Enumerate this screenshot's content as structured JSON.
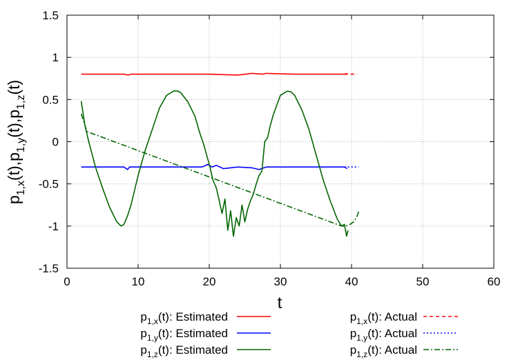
{
  "chart_data": {
    "type": "line",
    "xlabel": "t",
    "ylabel": {
      "parts": [
        {
          "base": "p",
          "sub": "1,x"
        },
        {
          "text": "(t),"
        },
        {
          "base": "p",
          "sub": "1,y"
        },
        {
          "text": "(t),"
        },
        {
          "base": "p",
          "sub": "1,z"
        },
        {
          "text": "(t)"
        }
      ]
    },
    "xlim": [
      0,
      60
    ],
    "ylim": [
      -1.5,
      1.5
    ],
    "x_ticks": [
      "0",
      "10",
      "20",
      "30",
      "40",
      "50",
      "60"
    ],
    "y_ticks": [
      "-1.5",
      "-1",
      "-0.5",
      "0",
      "0.5",
      "1",
      "1.5"
    ],
    "grid": true,
    "legend_position": "bottom",
    "series": [
      {
        "id": "est_x",
        "name": "Estimated",
        "sub": "1,x",
        "color": "#ff0000",
        "style": "solid",
        "x": [
          2,
          8,
          8.6,
          9,
          12,
          16,
          20,
          24,
          26,
          27.5,
          28,
          32,
          36,
          39,
          39.4
        ],
        "y": [
          0.8,
          0.8,
          0.79,
          0.8,
          0.8,
          0.8,
          0.8,
          0.79,
          0.81,
          0.8,
          0.81,
          0.8,
          0.8,
          0.8,
          0.81
        ]
      },
      {
        "id": "est_y",
        "name": "Estimated",
        "sub": "1,y",
        "color": "#0000ff",
        "style": "solid",
        "x": [
          2,
          8,
          8.5,
          8.8,
          12,
          16,
          19,
          19.8,
          20.4,
          21,
          22,
          24,
          26,
          27,
          28,
          32,
          36,
          39,
          39.4
        ],
        "y": [
          -0.3,
          -0.3,
          -0.33,
          -0.3,
          -0.3,
          -0.3,
          -0.3,
          -0.27,
          -0.3,
          -0.28,
          -0.32,
          -0.3,
          -0.31,
          -0.33,
          -0.3,
          -0.3,
          -0.3,
          -0.3,
          -0.32
        ]
      },
      {
        "id": "est_z",
        "name": "Estimated",
        "sub": "1,z",
        "color": "#006400",
        "style": "solid",
        "x": [
          2,
          2.5,
          3,
          4,
          5,
          6,
          7,
          7.6,
          8,
          8.5,
          9,
          10,
          11,
          12,
          13,
          14,
          15,
          15.6,
          16,
          17,
          18,
          18.6,
          19.2,
          19.6,
          20.1,
          20.5,
          21,
          21.4,
          21.8,
          22.2,
          22.6,
          23,
          23.4,
          23.8,
          24.2,
          24.6,
          25,
          25.4,
          25.8,
          26.2,
          26.6,
          27,
          27.4,
          27.8,
          28.2,
          28.6,
          29,
          30,
          31,
          31.5,
          32,
          33,
          34,
          35,
          36,
          37,
          38,
          38.6,
          39,
          39.3,
          39.5
        ],
        "y": [
          0.48,
          0.2,
          0.02,
          -0.3,
          -0.55,
          -0.78,
          -0.95,
          -1.0,
          -0.98,
          -0.88,
          -0.75,
          -0.4,
          -0.1,
          0.15,
          0.4,
          0.55,
          0.6,
          0.6,
          0.58,
          0.47,
          0.3,
          0.12,
          -0.03,
          -0.15,
          -0.3,
          -0.45,
          -0.55,
          -0.7,
          -0.85,
          -0.68,
          -1.05,
          -0.82,
          -1.12,
          -0.9,
          -1.0,
          -0.75,
          -0.95,
          -0.8,
          -0.7,
          -0.62,
          -0.5,
          -0.4,
          -0.35,
          0.0,
          0.05,
          0.2,
          0.32,
          0.55,
          0.6,
          0.59,
          0.55,
          0.38,
          0.15,
          -0.15,
          -0.45,
          -0.7,
          -0.92,
          -1.0,
          -0.98,
          -1.12,
          -1.05
        ]
      },
      {
        "id": "act_x",
        "name": "Actual",
        "sub": "1,x",
        "color": "#ff0000",
        "style": "dash",
        "x": [
          39,
          40.8
        ],
        "y": [
          0.8,
          0.8
        ]
      },
      {
        "id": "act_y",
        "name": "Actual",
        "sub": "1,y",
        "color": "#0000ff",
        "style": "dot",
        "x": [
          39,
          41
        ],
        "y": [
          -0.3,
          -0.3
        ]
      },
      {
        "id": "act_z",
        "name": "Actual",
        "sub": "1,z",
        "color": "#006400",
        "style": "dashdot",
        "x": [
          2,
          2.8,
          38.6,
          39.2,
          39.8,
          40.3,
          40.7,
          41
        ],
        "y": [
          0.33,
          0.12,
          -1.0,
          -1.0,
          -0.98,
          -0.95,
          -0.9,
          -0.83
        ]
      }
    ]
  }
}
